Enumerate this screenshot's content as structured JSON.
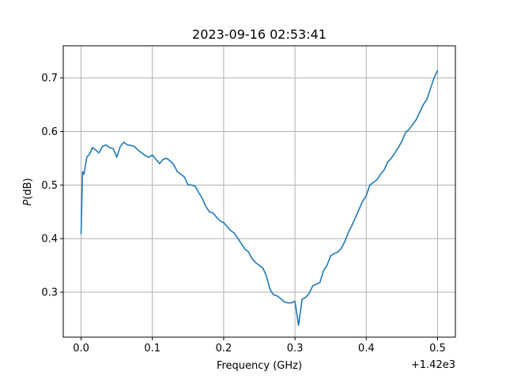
{
  "chart_data": {
    "type": "line",
    "title": "2023-09-16 02:53:41",
    "xlabel": "Frequency (GHz)",
    "ylabel_italic": "P",
    "ylabel_rest": "(dB)",
    "x_offset_label": "+1.42e3",
    "xlim": [
      1419.975,
      1420.525
    ],
    "ylim": [
      0.216,
      0.76
    ],
    "x_ticks": [
      1420.0,
      1420.1,
      1420.2,
      1420.3,
      1420.4,
      1420.5
    ],
    "x_tick_labels": [
      "0.0",
      "0.1",
      "0.2",
      "0.3",
      "0.4",
      "0.5"
    ],
    "y_ticks": [
      0.3,
      0.4,
      0.5,
      0.6,
      0.7
    ],
    "y_tick_labels": [
      "0.3",
      "0.4",
      "0.5",
      "0.6",
      "0.7"
    ],
    "grid": true,
    "line_color": "#1f77b4",
    "series": [
      {
        "x": [
          1420.0,
          1420.002,
          1420.004,
          1420.008,
          1420.012,
          1420.016,
          1420.02,
          1420.025,
          1420.03,
          1420.035,
          1420.04,
          1420.045,
          1420.05,
          1420.055,
          1420.06,
          1420.065,
          1420.07,
          1420.075,
          1420.08,
          1420.085,
          1420.09,
          1420.095,
          1420.1,
          1420.105,
          1420.11,
          1420.115,
          1420.12,
          1420.125,
          1420.13,
          1420.135,
          1420.14,
          1420.145,
          1420.15,
          1420.155,
          1420.16,
          1420.165,
          1420.17,
          1420.175,
          1420.18,
          1420.185,
          1420.19,
          1420.195,
          1420.2,
          1420.205,
          1420.21,
          1420.215,
          1420.22,
          1420.225,
          1420.23,
          1420.235,
          1420.24,
          1420.245,
          1420.25,
          1420.255,
          1420.26,
          1420.265,
          1420.27,
          1420.275,
          1420.28,
          1420.285,
          1420.29,
          1420.295,
          1420.3,
          1420.302,
          1420.305,
          1420.31,
          1420.315,
          1420.32,
          1420.325,
          1420.33,
          1420.335,
          1420.34,
          1420.345,
          1420.35,
          1420.355,
          1420.36,
          1420.365,
          1420.37,
          1420.375,
          1420.38,
          1420.385,
          1420.39,
          1420.395,
          1420.4,
          1420.405,
          1420.41,
          1420.415,
          1420.42,
          1420.425,
          1420.43,
          1420.435,
          1420.44,
          1420.445,
          1420.45,
          1420.455,
          1420.46,
          1420.465,
          1420.47,
          1420.475,
          1420.48,
          1420.485,
          1420.49,
          1420.495,
          1420.5
        ],
        "y": [
          0.408,
          0.525,
          0.52,
          0.552,
          0.558,
          0.57,
          0.566,
          0.56,
          0.572,
          0.575,
          0.57,
          0.568,
          0.552,
          0.572,
          0.58,
          0.575,
          0.574,
          0.572,
          0.565,
          0.56,
          0.555,
          0.552,
          0.556,
          0.548,
          0.54,
          0.548,
          0.55,
          0.545,
          0.538,
          0.525,
          0.52,
          0.515,
          0.5,
          0.5,
          0.498,
          0.486,
          0.475,
          0.46,
          0.45,
          0.448,
          0.44,
          0.433,
          0.43,
          0.422,
          0.415,
          0.41,
          0.4,
          0.39,
          0.38,
          0.375,
          0.362,
          0.355,
          0.35,
          0.345,
          0.33,
          0.305,
          0.295,
          0.293,
          0.288,
          0.282,
          0.28,
          0.28,
          0.283,
          0.265,
          0.238,
          0.287,
          0.29,
          0.298,
          0.312,
          0.315,
          0.318,
          0.34,
          0.35,
          0.368,
          0.372,
          0.375,
          0.382,
          0.395,
          0.412,
          0.425,
          0.44,
          0.455,
          0.47,
          0.48,
          0.5,
          0.505,
          0.51,
          0.52,
          0.528,
          0.543,
          0.55,
          0.56,
          0.57,
          0.582,
          0.598,
          0.604,
          0.613,
          0.622,
          0.636,
          0.65,
          0.66,
          0.68,
          0.7,
          0.714
        ]
      }
    ]
  }
}
